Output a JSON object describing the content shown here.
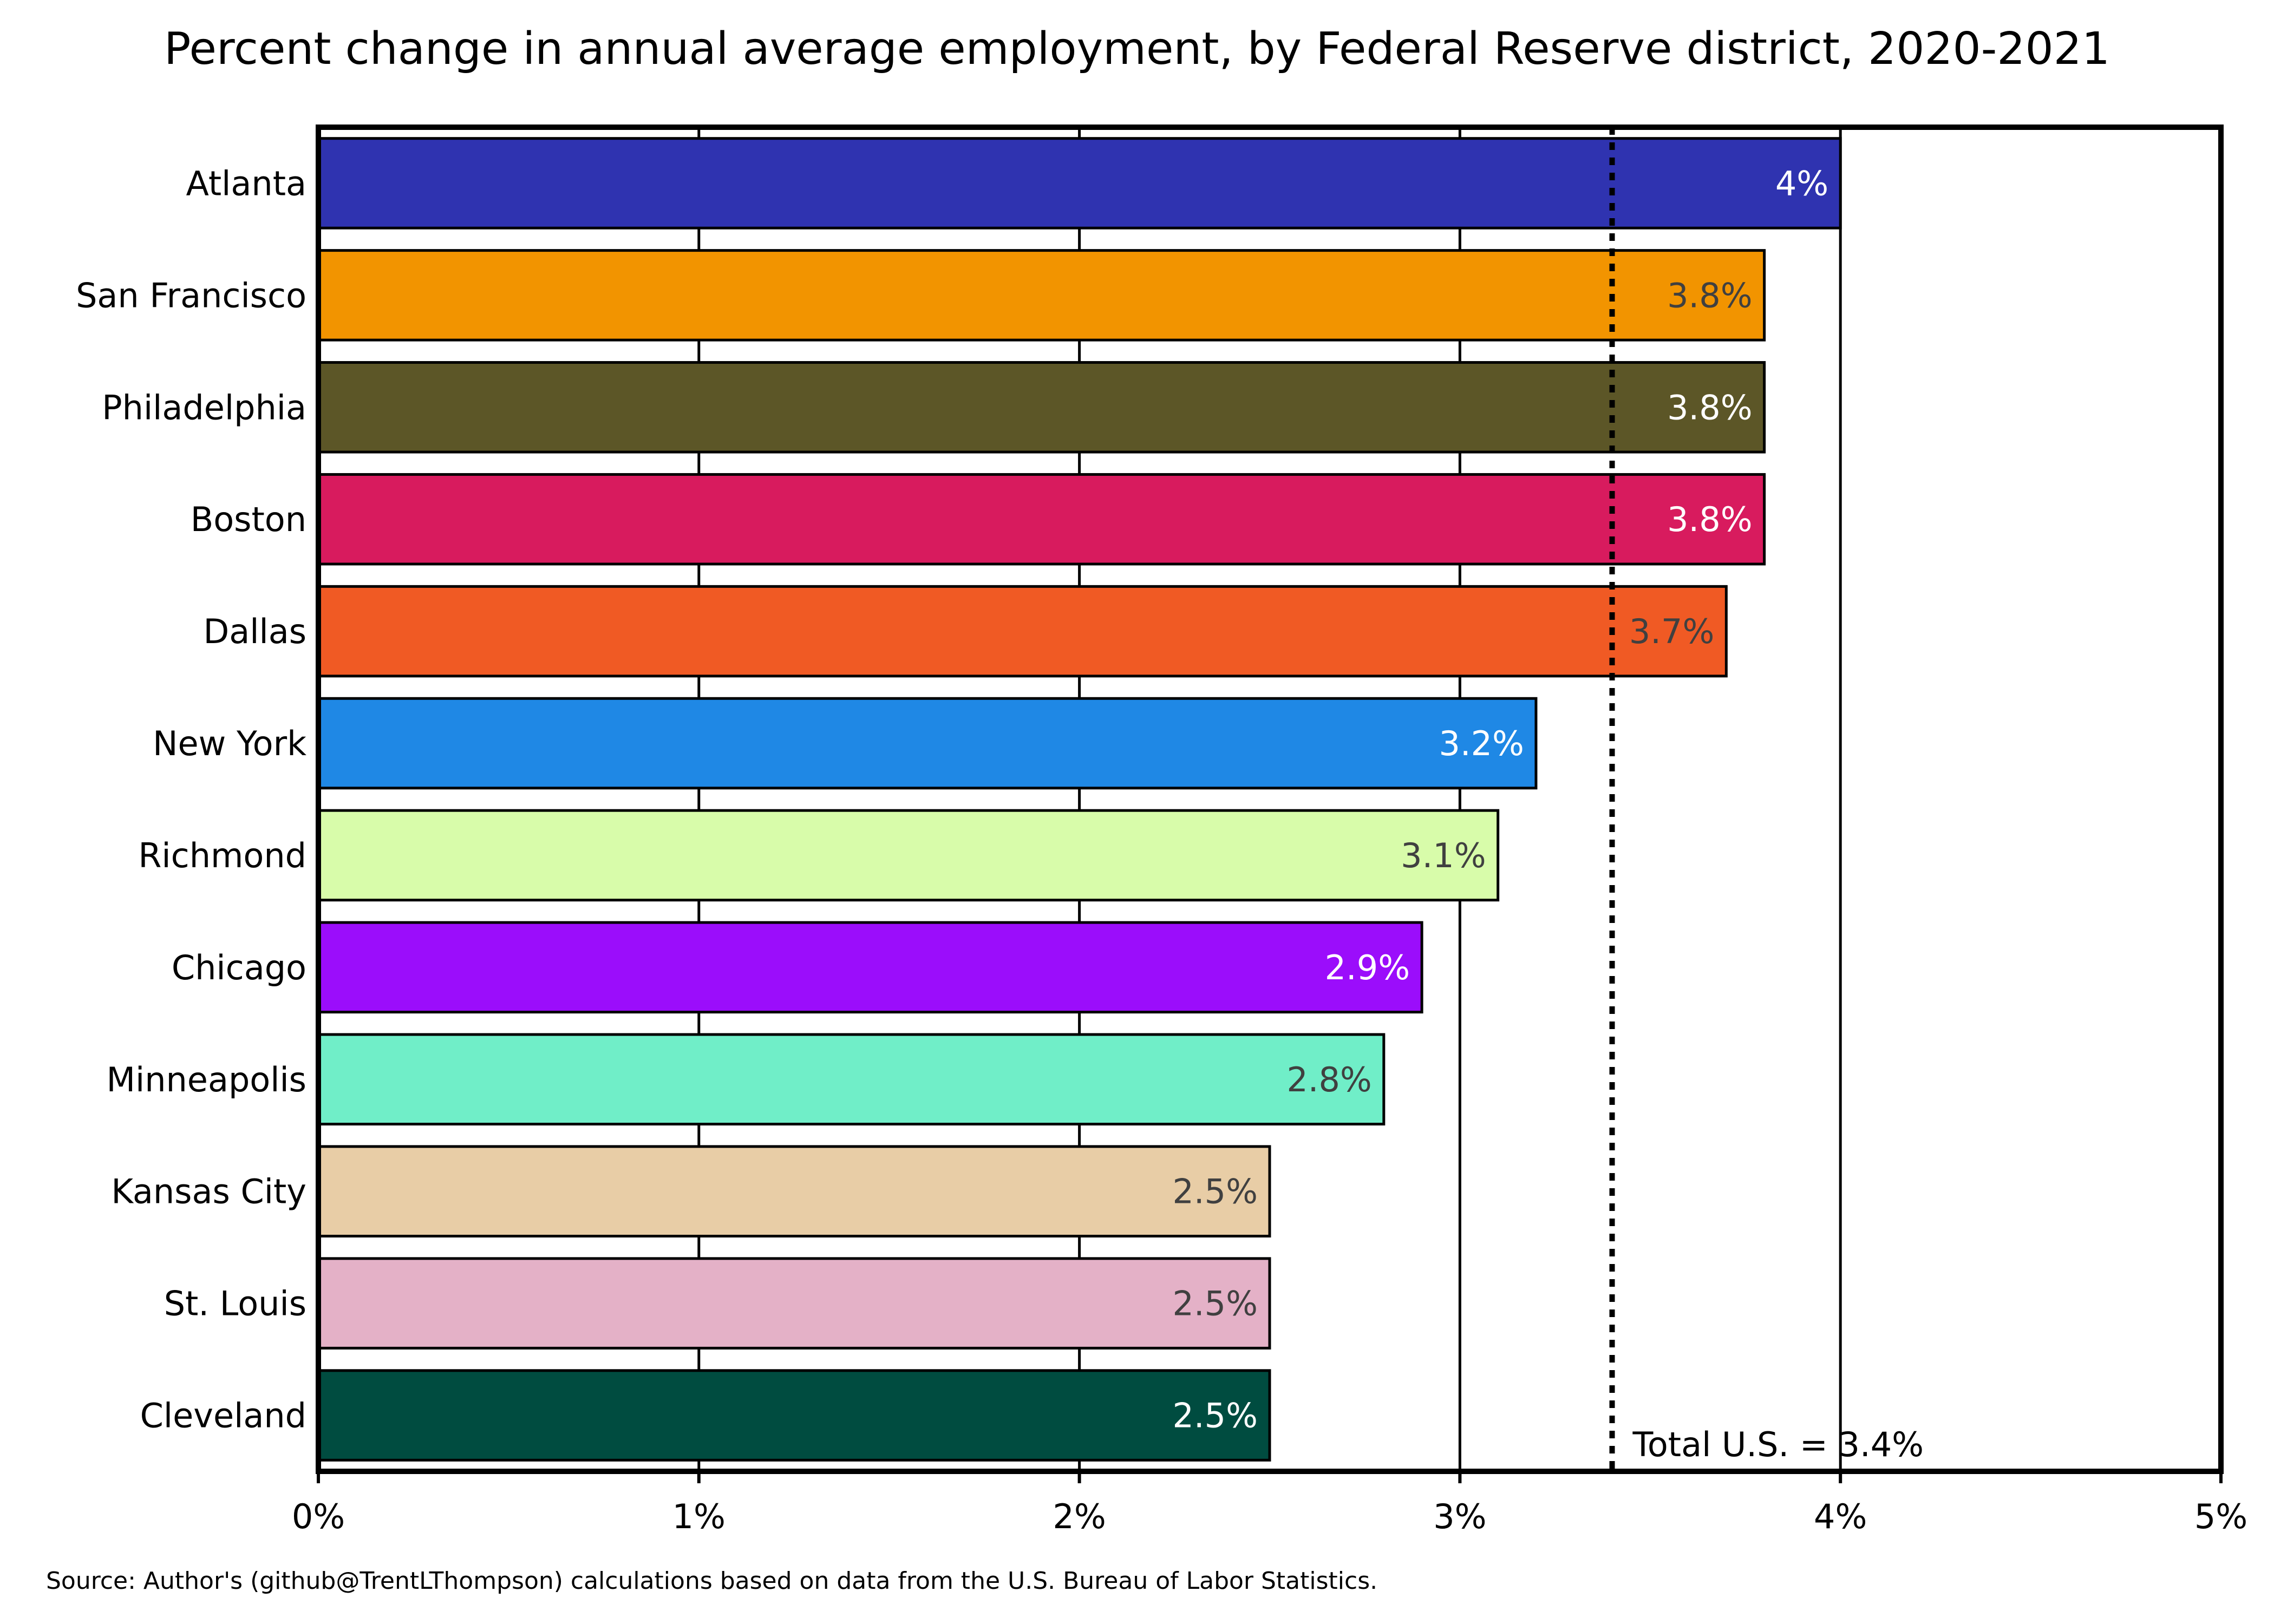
{
  "chart_data": {
    "type": "bar",
    "orientation": "horizontal",
    "title": "Percent change in annual average employment, by Federal Reserve district, 2020-2021",
    "source": "Source: Author's (github@TrentLThompson) calculations based on data from the U.S. Bureau of Labor Statistics.",
    "xlabel": "",
    "ylabel": "",
    "xlim": [
      0,
      5
    ],
    "x_ticks": [
      0,
      1,
      2,
      3,
      4,
      5
    ],
    "x_tick_labels": [
      "0%",
      "1%",
      "2%",
      "3%",
      "4%",
      "5%"
    ],
    "grid": "vertical",
    "categories": [
      "Atlanta",
      "San Francisco",
      "Philadelphia",
      "Boston",
      "Dallas",
      "New York",
      "Richmond",
      "Chicago",
      "Minneapolis",
      "Kansas City",
      "St. Louis",
      "Cleveland"
    ],
    "values": [
      4.0,
      3.8,
      3.8,
      3.8,
      3.7,
      3.2,
      3.1,
      2.9,
      2.8,
      2.5,
      2.5,
      2.5
    ],
    "data_labels": [
      "4%",
      "3.8%",
      "3.8%",
      "3.8%",
      "3.7%",
      "3.2%",
      "3.1%",
      "2.9%",
      "2.8%",
      "2.5%",
      "2.5%",
      "2.5%"
    ],
    "colors": [
      "#2f33b0",
      "#f29400",
      "#5c5627",
      "#d81b5e",
      "#f05a24",
      "#1f88e5",
      "#d8fcaa",
      "#9b0dfb",
      "#70eec8",
      "#e8cda6",
      "#e4b1c7",
      "#004c40"
    ],
    "label_colors": [
      "#ffffff",
      "#404040",
      "#ffffff",
      "#ffffff",
      "#404040",
      "#ffffff",
      "#404040",
      "#ffffff",
      "#404040",
      "#404040",
      "#404040",
      "#ffffff"
    ],
    "reference_line": {
      "value": 3.4,
      "label": "Total U.S. = 3.4%",
      "style": "dotted"
    }
  }
}
